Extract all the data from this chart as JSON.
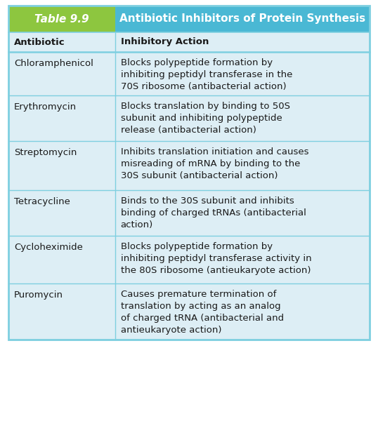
{
  "table_label": "Table 9.9",
  "title": "Antibiotic Inhibitors of Protein Synthesis",
  "header_bg_label": "#8dc63f",
  "header_bg_title": "#4ab8d4",
  "header_text_color": "#ffffff",
  "col1_header": "Antibiotic",
  "col2_header": "Inhibitory Action",
  "body_bg": "#ddeef5",
  "border_color": "#7ecfe0",
  "text_color": "#1a1a1a",
  "fig_width": 5.38,
  "fig_height": 6.0,
  "dpi": 100,
  "rows": [
    {
      "antibiotic": "Chloramphenicol",
      "action": "Blocks polypeptide formation by\ninhibiting peptidyl transferase in the\n70S ribosome (antibacterial action)"
    },
    {
      "antibiotic": "Erythromycin",
      "action": "Blocks translation by binding to 50S\nsubunit and inhibiting polypeptide\nrelease (antibacterial action)"
    },
    {
      "antibiotic": "Streptomycin",
      "action": "Inhibits translation initiation and causes\nmisreading of mRNA by binding to the\n30S subunit (antibacterial action)"
    },
    {
      "antibiotic": "Tetracycline",
      "action": "Binds to the 30S subunit and inhibits\nbinding of charged tRNAs (antibacterial\naction)"
    },
    {
      "antibiotic": "Cycloheximide",
      "action": "Blocks polypeptide formation by\ninhibiting peptidyl transferase activity in\nthe 80S ribosome (antieukaryote action)"
    },
    {
      "antibiotic": "Puromycin",
      "action": "Causes premature termination of\ntranslation by acting as an analog\nof charged tRNA (antibacterial and\nantieukaryote action)"
    }
  ]
}
